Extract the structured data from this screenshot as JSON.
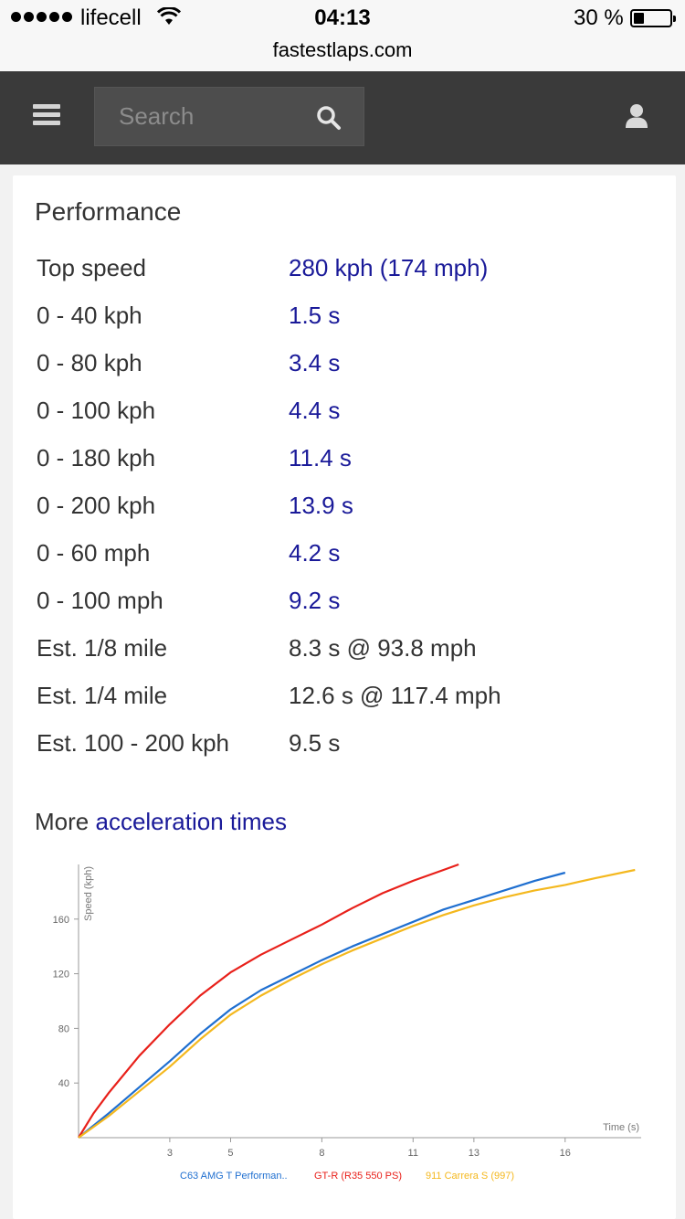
{
  "status_bar": {
    "carrier": "lifecell",
    "time": "04:13",
    "battery": "30 %",
    "battery_level": 0.3
  },
  "browser": {
    "url": "fastestlaps.com"
  },
  "nav": {
    "search_placeholder": "Search"
  },
  "performance": {
    "title": "Performance",
    "rows": [
      {
        "label": "Top speed",
        "value": "280 kph (174 mph)",
        "link": true
      },
      {
        "label": "0 - 40 kph",
        "value": "1.5 s",
        "link": true
      },
      {
        "label": "0 - 80 kph",
        "value": "3.4 s",
        "link": true
      },
      {
        "label": "0 - 100 kph",
        "value": "4.4 s",
        "link": true
      },
      {
        "label": "0 - 180 kph",
        "value": "11.4 s",
        "link": true
      },
      {
        "label": "0 - 200 kph",
        "value": "13.9 s",
        "link": true
      },
      {
        "label": "0 - 60 mph",
        "value": "4.2 s",
        "link": true
      },
      {
        "label": "0 - 100 mph",
        "value": "9.2 s",
        "link": true
      },
      {
        "label": "Est. 1/8 mile",
        "value": "8.3 s @ 93.8 mph",
        "link": false
      },
      {
        "label": "Est. 1/4 mile",
        "value": "12.6 s @ 117.4 mph",
        "link": false
      },
      {
        "label": "Est. 100 - 200 kph",
        "value": "9.5 s",
        "link": false
      }
    ],
    "more_prefix": "More",
    "more_link": "acceleration times"
  },
  "chart_data": {
    "type": "line",
    "xlabel": "Time (s)",
    "ylabel": "Speed (kph)",
    "xlim": [
      0,
      18.5
    ],
    "ylim": [
      0,
      200
    ],
    "xticks": [
      3,
      5,
      8,
      11,
      13,
      16
    ],
    "yticks": [
      40,
      80,
      120,
      160
    ],
    "legend_position": "bottom",
    "series": [
      {
        "name": "C63 AMG T Performan..",
        "color": "#1f6fd0",
        "x": [
          0,
          1,
          2,
          3,
          4,
          5,
          6,
          7,
          8,
          9,
          10,
          11,
          12,
          13,
          14,
          15,
          16
        ],
        "y": [
          0,
          18,
          37,
          56,
          76,
          94,
          108,
          119,
          130,
          140,
          149,
          158,
          167,
          174,
          181,
          188,
          194
        ]
      },
      {
        "name": "GT-R (R35 550 PS)",
        "color": "#e8201a",
        "x": [
          0,
          0.5,
          1,
          2,
          3,
          4,
          5,
          6,
          7,
          8,
          9,
          10,
          11,
          12,
          12.5
        ],
        "y": [
          0,
          18,
          33,
          60,
          83,
          104,
          121,
          134,
          145,
          156,
          168,
          179,
          188,
          196,
          200
        ]
      },
      {
        "name": "911 Carrera S (997)",
        "color": "#f4b81e",
        "x": [
          0,
          1,
          2,
          3,
          4,
          5,
          6,
          7,
          8,
          9,
          10,
          11,
          12,
          13,
          14,
          15,
          16,
          17,
          18.3
        ],
        "y": [
          0,
          16,
          34,
          52,
          72,
          90,
          104,
          116,
          127,
          137,
          146,
          155,
          163,
          170,
          176,
          181,
          185,
          190,
          196
        ]
      }
    ]
  }
}
